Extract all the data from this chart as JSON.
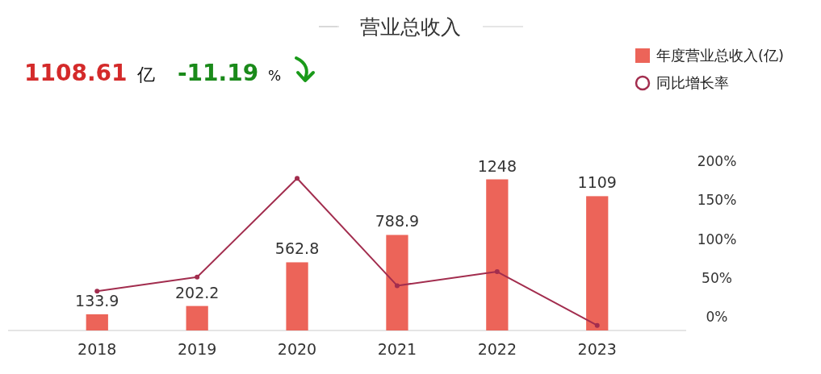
{
  "chart_data": {
    "type": "bar",
    "title": "营业总收入",
    "annotations": [
      "1108.61",
      "亿",
      "-11.19",
      "%"
    ],
    "categories": [
      "2018",
      "2019",
      "2020",
      "2021",
      "2022",
      "2023"
    ],
    "series": [
      {
        "name": "年度营业总收入(亿)",
        "color": "#ec6459",
        "values": [
          133.9,
          202.2,
          562.8,
          788.9,
          1248,
          1109
        ],
        "value_labels": [
          "133.9",
          "202.2",
          "562.8",
          "788.9",
          "1248",
          "1109"
        ]
      },
      {
        "name": "同比增长率",
        "type": "line",
        "axis": "y2",
        "color": "#a22d4e",
        "marker": "circle",
        "values": [
          33,
          51,
          178,
          40,
          58,
          -11
        ]
      }
    ],
    "y2lim": [
      -17.6,
      200
    ],
    "y2ticks": [
      {
        "value": 0,
        "label": "0%"
      },
      {
        "value": 50,
        "label": "50%"
      },
      {
        "value": 100,
        "label": "100%"
      },
      {
        "value": 150,
        "label": "150%"
      },
      {
        "value": 200,
        "label": "200%"
      }
    ],
    "legend": "top right",
    "grid": false
  }
}
